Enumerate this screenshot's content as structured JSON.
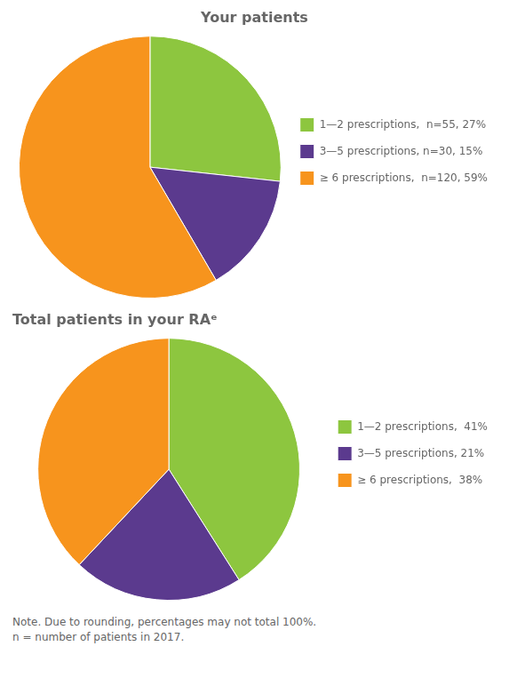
{
  "chart_data": [
    {
      "type": "pie",
      "title": "Your patients",
      "categories": [
        "1—2 prescriptions,  n=55, 27%",
        "3—5 prescriptions, n=30, 15%",
        "≥ 6 prescriptions,  n=120, 59%"
      ],
      "values": [
        27,
        15,
        59
      ],
      "colors": [
        "#8dc63f",
        "#5b3a8e",
        "#f7941d"
      ],
      "legend": "right"
    },
    {
      "type": "pie",
      "title": "Total patients in your RAᵉ",
      "categories": [
        "1—2 prescriptions,  41%",
        "3—5 prescriptions, 21%",
        "≥ 6 prescriptions,  38%"
      ],
      "values": [
        41,
        21,
        38
      ],
      "colors": [
        "#8dc63f",
        "#5b3a8e",
        "#f7941d"
      ],
      "legend": "right",
      "annotations": [
        "Note. Due to rounding, percentages may not total 100%.\nn = number of patients in 2017."
      ]
    }
  ]
}
